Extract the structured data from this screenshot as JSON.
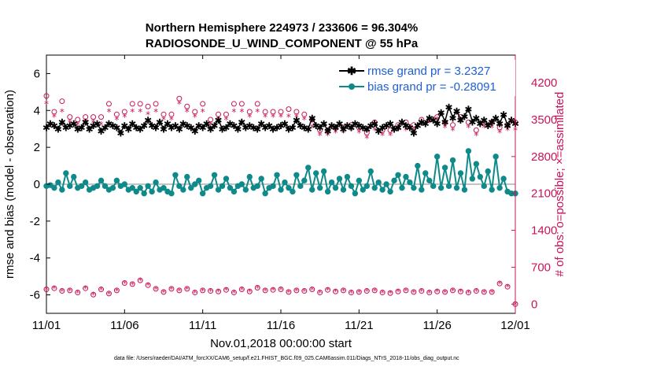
{
  "chart_data": {
    "type": "line",
    "title_line1": "Northern Hemisphere 224973 / 233606 = 96.304%",
    "title_line2": "RADIOSONDE_U_WIND_COMPONENT @ 55 hPa",
    "xlabel": "Nov.01,2018 00:00:00 start",
    "ylabel": "rmse and bias (model - observation)",
    "y2label": "# of obs: o=possible; ×=assimilated",
    "footer": "data file: /Users/raeder/DAI/ATM_forcXX/CAM6_setup/f.e21.FHIST_BGC.f09_025.CAM6assim.011/Diags_NTrS_2018-11/obs_diag_output.nc",
    "x_ticks": [
      "11/01",
      "11/06",
      "11/11",
      "11/16",
      "11/21",
      "11/26",
      "12/01"
    ],
    "x_tick_days": [
      0,
      5,
      10,
      15,
      20,
      25,
      30
    ],
    "xlim": [
      0,
      30
    ],
    "ylim": [
      -7,
      7
    ],
    "y_ticks": [
      "6",
      "4",
      "2",
      "0",
      "-2",
      "-4",
      "-6"
    ],
    "y_tick_values": [
      6,
      4,
      2,
      0,
      -2,
      -4,
      -6
    ],
    "y2lim": [
      -175,
      4725
    ],
    "y2_ticks": [
      "4200",
      "3500",
      "2800",
      "2100",
      "1400",
      "700",
      "0"
    ],
    "y2_tick_values": [
      4200,
      3500,
      2800,
      2100,
      1400,
      700,
      0
    ],
    "legend": {
      "rmse_label": "rmse grand pr = 3.2327",
      "bias_label": "bias grand pr = -0.28091"
    },
    "colors": {
      "rmse": "#000000",
      "bias": "#0f8a8a",
      "obs": "#c8145a",
      "zero_line": "#b0b0b0",
      "legend_text": "#1f5fd6"
    },
    "series": [
      {
        "name": "rmse",
        "days": [
          0.0,
          0.25,
          0.5,
          0.75,
          1.0,
          1.25,
          1.5,
          1.75,
          2.0,
          2.25,
          2.5,
          2.75,
          3.0,
          3.25,
          3.5,
          3.75,
          4.0,
          4.25,
          4.5,
          4.75,
          5.0,
          5.25,
          5.5,
          5.75,
          6.0,
          6.25,
          6.5,
          6.75,
          7.0,
          7.25,
          7.5,
          7.75,
          8.0,
          8.25,
          8.5,
          8.75,
          9.0,
          9.25,
          9.5,
          9.75,
          10.0,
          10.25,
          10.5,
          10.75,
          11.0,
          11.25,
          11.5,
          11.75,
          12.0,
          12.25,
          12.5,
          12.75,
          13.0,
          13.25,
          13.5,
          13.75,
          14.0,
          14.25,
          14.5,
          14.75,
          15.0,
          15.25,
          15.5,
          15.75,
          16.0,
          16.25,
          16.5,
          16.75,
          17.0,
          17.25,
          17.5,
          17.75,
          18.0,
          18.25,
          18.5,
          18.75,
          19.0,
          19.25,
          19.5,
          19.75,
          20.0,
          20.25,
          20.5,
          20.75,
          21.0,
          21.25,
          21.5,
          21.75,
          22.0,
          22.25,
          22.5,
          22.75,
          23.0,
          23.25,
          23.5,
          23.75,
          24.0,
          24.25,
          24.5,
          24.75,
          25.0,
          25.25,
          25.5,
          25.75,
          26.0,
          26.25,
          26.5,
          26.75,
          27.0,
          27.25,
          27.5,
          27.75,
          28.0,
          28.25,
          28.5,
          28.75,
          29.0,
          29.25,
          29.5,
          29.75,
          30.0
        ],
        "values": [
          3.1,
          3.3,
          3.2,
          3.0,
          3.4,
          3.1,
          3.2,
          3.3,
          3.0,
          3.1,
          3.4,
          3.0,
          3.2,
          3.3,
          2.9,
          3.1,
          3.3,
          3.2,
          3.1,
          2.8,
          3.2,
          3.0,
          3.3,
          3.1,
          3.0,
          3.2,
          3.5,
          3.2,
          3.1,
          3.4,
          3.0,
          3.3,
          3.1,
          3.2,
          3.0,
          3.3,
          3.2,
          3.1,
          2.9,
          3.2,
          3.1,
          3.3,
          3.0,
          3.2,
          3.5,
          3.0,
          3.1,
          3.3,
          3.2,
          3.0,
          3.4,
          3.1,
          3.2,
          3.1,
          3.0,
          3.3,
          3.1,
          3.2,
          3.0,
          3.1,
          3.2,
          3.3,
          3.0,
          3.1,
          3.5,
          3.2,
          3.1,
          3.0,
          3.6,
          3.2,
          3.1,
          3.3,
          2.9,
          3.2,
          3.1,
          3.3,
          3.0,
          3.2,
          3.1,
          3.3,
          3.2,
          3.1,
          3.0,
          3.2,
          3.3,
          2.9,
          3.1,
          3.2,
          3.3,
          3.0,
          3.1,
          3.4,
          3.2,
          3.1,
          2.8,
          3.2,
          3.4,
          3.3,
          3.6,
          3.5,
          3.3,
          3.9,
          3.4,
          4.2,
          3.6,
          4.0,
          3.5,
          3.7,
          4.1,
          3.4,
          3.6,
          3.3,
          3.5,
          3.2,
          3.4,
          3.6,
          3.3,
          3.8,
          3.2,
          3.5,
          3.3
        ]
      },
      {
        "name": "bias",
        "days": [
          0.0,
          0.25,
          0.5,
          0.75,
          1.0,
          1.25,
          1.5,
          1.75,
          2.0,
          2.25,
          2.5,
          2.75,
          3.0,
          3.25,
          3.5,
          3.75,
          4.0,
          4.25,
          4.5,
          4.75,
          5.0,
          5.25,
          5.5,
          5.75,
          6.0,
          6.25,
          6.5,
          6.75,
          7.0,
          7.25,
          7.5,
          7.75,
          8.0,
          8.25,
          8.5,
          8.75,
          9.0,
          9.25,
          9.5,
          9.75,
          10.0,
          10.25,
          10.5,
          10.75,
          11.0,
          11.25,
          11.5,
          11.75,
          12.0,
          12.25,
          12.5,
          12.75,
          13.0,
          13.25,
          13.5,
          13.75,
          14.0,
          14.25,
          14.5,
          14.75,
          15.0,
          15.25,
          15.5,
          15.75,
          16.0,
          16.25,
          16.5,
          16.75,
          17.0,
          17.25,
          17.5,
          17.75,
          18.0,
          18.25,
          18.5,
          18.75,
          19.0,
          19.25,
          19.5,
          19.75,
          20.0,
          20.25,
          20.5,
          20.75,
          21.0,
          21.25,
          21.5,
          21.75,
          22.0,
          22.25,
          22.5,
          22.75,
          23.0,
          23.25,
          23.5,
          23.75,
          24.0,
          24.25,
          24.5,
          24.75,
          25.0,
          25.25,
          25.5,
          25.75,
          26.0,
          26.25,
          26.5,
          26.75,
          27.0,
          27.25,
          27.5,
          27.75,
          28.0,
          28.25,
          28.5,
          28.75,
          29.0,
          29.25,
          29.5,
          29.75,
          30.0
        ],
        "values": [
          -0.1,
          -0.05,
          -0.2,
          0.1,
          -0.3,
          0.6,
          -0.1,
          0.4,
          -0.2,
          -0.1,
          0.1,
          -0.3,
          -0.2,
          -0.1,
          0.2,
          -0.1,
          -0.3,
          -0.2,
          0.2,
          -0.1,
          0.0,
          -0.3,
          -0.2,
          -0.4,
          -0.2,
          -0.5,
          -0.1,
          -0.4,
          0.1,
          -0.3,
          -0.2,
          -0.4,
          -0.5,
          0.5,
          -0.1,
          -0.3,
          0.4,
          -0.2,
          0.0,
          0.2,
          -0.5,
          -0.2,
          -0.1,
          0.5,
          -0.3,
          -0.1,
          0.3,
          -0.2,
          -0.4,
          -0.1,
          0.0,
          -0.3,
          0.4,
          -0.2,
          -0.1,
          0.3,
          -0.5,
          -0.2,
          -0.1,
          0.5,
          -0.3,
          0.1,
          -0.2,
          -0.4,
          0.5,
          -0.1,
          0.2,
          0.9,
          -0.3,
          0.6,
          -0.2,
          0.7,
          -0.4,
          0.1,
          -0.2,
          0.3,
          -0.3,
          0.4,
          -0.1,
          -0.5,
          0.2,
          -0.3,
          -0.1,
          0.7,
          -0.2,
          0.1,
          -0.3,
          0.0,
          -0.4,
          0.2,
          0.5,
          -0.2,
          0.4,
          0.1,
          -0.2,
          1.0,
          -0.3,
          0.6,
          0.2,
          -0.1,
          1.5,
          -0.2,
          0.9,
          -0.1,
          1.3,
          -0.2,
          0.6,
          -0.3,
          1.8,
          0.3,
          1.1,
          0.4,
          -0.1,
          0.7,
          -0.3,
          1.5,
          -0.2,
          0.3,
          -0.4,
          -0.5,
          -0.5
        ]
      },
      {
        "name": "obs possible",
        "days": [
          0.0,
          0.5,
          1.0,
          1.5,
          2.0,
          2.5,
          3.0,
          3.5,
          4.0,
          4.5,
          5.0,
          5.5,
          6.0,
          6.5,
          7.0,
          7.5,
          8.0,
          8.5,
          9.0,
          9.5,
          10.0,
          10.5,
          11.0,
          11.5,
          12.0,
          12.5,
          13.0,
          13.5,
          14.0,
          14.5,
          15.0,
          15.5,
          16.0,
          16.5,
          17.0,
          17.5,
          18.0,
          18.5,
          19.0,
          19.5,
          20.0,
          20.5,
          21.0,
          21.5,
          22.0,
          22.5,
          23.0,
          23.5,
          24.0,
          24.5,
          25.0,
          25.5,
          26.0,
          26.5,
          27.0,
          27.5,
          28.0,
          28.5,
          29.0,
          29.5,
          30.0
        ],
        "values": [
          3950,
          3650,
          3850,
          3550,
          3500,
          3550,
          3550,
          3550,
          3800,
          3600,
          3650,
          3800,
          3800,
          3750,
          3800,
          3600,
          3600,
          3900,
          3750,
          3650,
          3800,
          3500,
          3600,
          3600,
          3800,
          3800,
          3650,
          3800,
          3650,
          3650,
          3650,
          3700,
          3650,
          3600,
          3500,
          3300,
          3300,
          3350,
          3350,
          3400,
          3350,
          3250,
          3450,
          3300,
          3300,
          3400,
          3450,
          3400,
          3500,
          3500,
          3550,
          3450,
          3400,
          3550,
          3450,
          3300,
          3450,
          3450,
          3350,
          3400,
          3450
        ]
      },
      {
        "name": "obs assimilated",
        "days": [
          0.0,
          0.5,
          1.0,
          1.5,
          2.0,
          2.5,
          3.0,
          3.5,
          4.0,
          4.5,
          5.0,
          5.5,
          6.0,
          6.5,
          7.0,
          7.5,
          8.0,
          8.5,
          9.0,
          9.5,
          10.0,
          10.5,
          11.0,
          11.5,
          12.0,
          12.5,
          13.0,
          13.5,
          14.0,
          14.5,
          15.0,
          15.5,
          16.0,
          16.5,
          17.0,
          17.5,
          18.0,
          18.5,
          19.0,
          19.5,
          20.0,
          20.5,
          21.0,
          21.5,
          22.0,
          22.5,
          23.0,
          23.5,
          24.0,
          24.5,
          25.0,
          25.5,
          26.0,
          26.5,
          27.0,
          27.5,
          28.0,
          28.5,
          29.0,
          29.5,
          30.0
        ],
        "values": [
          3800,
          3550,
          3650,
          3450,
          3400,
          3450,
          3450,
          3400,
          3650,
          3500,
          3550,
          3650,
          3650,
          3600,
          3650,
          3500,
          3500,
          3800,
          3650,
          3550,
          3650,
          3400,
          3500,
          3500,
          3650,
          3650,
          3550,
          3650,
          3550,
          3550,
          3550,
          3550,
          3550,
          3500,
          3350,
          3200,
          3200,
          3250,
          3250,
          3300,
          3250,
          3150,
          3300,
          3200,
          3200,
          3300,
          3300,
          3300,
          3400,
          3450,
          3500,
          3350,
          3300,
          3450,
          3350,
          3200,
          3350,
          3350,
          3250,
          3300,
          3300
        ]
      },
      {
        "name": "obs count 0 level",
        "days": [
          0.0,
          0.5,
          1.0,
          1.5,
          2.0,
          2.5,
          3.0,
          3.5,
          4.0,
          4.5,
          5.0,
          5.5,
          6.0,
          6.5,
          7.0,
          7.5,
          8.0,
          8.5,
          9.0,
          9.5,
          10.0,
          10.5,
          11.0,
          11.5,
          12.0,
          12.5,
          13.0,
          13.5,
          14.0,
          14.5,
          15.0,
          15.5,
          16.0,
          16.5,
          17.0,
          17.5,
          18.0,
          18.5,
          19.0,
          19.5,
          20.0,
          20.5,
          21.0,
          21.5,
          22.0,
          22.5,
          23.0,
          23.5,
          24.0,
          24.5,
          25.0,
          25.5,
          26.0,
          26.5,
          27.0,
          27.5,
          28.0,
          28.5,
          29.0,
          29.5,
          30.0
        ],
        "values": [
          280,
          300,
          250,
          260,
          220,
          300,
          180,
          280,
          200,
          260,
          400,
          380,
          450,
          360,
          290,
          230,
          290,
          260,
          290,
          220,
          260,
          250,
          240,
          270,
          220,
          280,
          240,
          310,
          260,
          270,
          280,
          230,
          260,
          250,
          280,
          220,
          270,
          240,
          260,
          220,
          230,
          250,
          260,
          220,
          210,
          240,
          260,
          230,
          250,
          220,
          240,
          230,
          260,
          240,
          220,
          250,
          230,
          230,
          390,
          330,
          0
        ]
      }
    ]
  }
}
